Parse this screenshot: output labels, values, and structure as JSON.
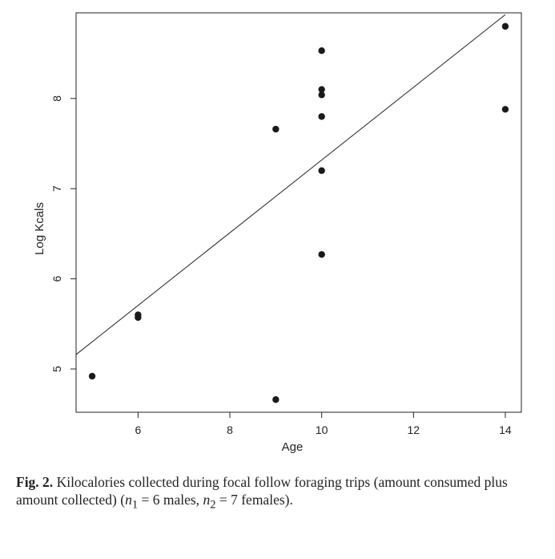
{
  "chart_data": {
    "type": "scatter",
    "xlabel": "Age",
    "ylabel": "Log Kcals",
    "xlim": [
      4.65,
      14.35
    ],
    "ylim": [
      4.52,
      8.95
    ],
    "xticks": [
      6,
      8,
      10,
      12,
      14
    ],
    "yticks": [
      5,
      6,
      7,
      8
    ],
    "points": [
      {
        "x": 5,
        "y": 4.92
      },
      {
        "x": 6,
        "y": 5.6
      },
      {
        "x": 6,
        "y": 5.57
      },
      {
        "x": 9,
        "y": 7.66
      },
      {
        "x": 9,
        "y": 4.66
      },
      {
        "x": 10,
        "y": 8.53
      },
      {
        "x": 10,
        "y": 8.1
      },
      {
        "x": 10,
        "y": 8.04
      },
      {
        "x": 10,
        "y": 7.8
      },
      {
        "x": 10,
        "y": 7.2
      },
      {
        "x": 10,
        "y": 6.27
      },
      {
        "x": 14,
        "y": 8.8
      },
      {
        "x": 14,
        "y": 7.88
      }
    ],
    "fit_line": {
      "x": [
        4.65,
        14.0
      ],
      "y": [
        5.16,
        8.93
      ]
    }
  },
  "caption": {
    "label": "Fig. 2.",
    "text_line1": "Kilocalories collected during focal follow foraging trips (amount consumed plus",
    "text_line2_prefix": "amount collected) (",
    "n1_symbol": "n",
    "n1_sub": "1",
    "n1_text": " = 6 males, ",
    "n2_symbol": "n",
    "n2_sub": "2",
    "n2_text": " = 7 females)."
  }
}
